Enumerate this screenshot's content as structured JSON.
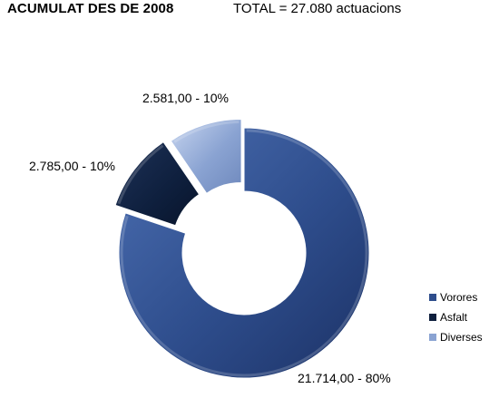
{
  "header": {
    "title": "ACUMULAT DES DE 2008",
    "total": "TOTAL = 27.080 actuacions"
  },
  "chart_data": {
    "type": "pie",
    "variant": "doughnut-exploded",
    "title": "",
    "series": [
      {
        "name": "Vorores",
        "value": 21714,
        "label": "21.714,00 - 80%",
        "color": "#2E4D8C"
      },
      {
        "name": "Asfalt",
        "value": 2785,
        "label": "2.785,00 - 10%",
        "color": "#0E1F3D"
      },
      {
        "name": "Diverses",
        "value": 2581,
        "label": "2.581,00 - 10%",
        "color": "#8AA3D2"
      }
    ],
    "legend": {
      "position": "right",
      "items": [
        "Vorores",
        "Asfalt",
        "Diverses"
      ]
    }
  }
}
